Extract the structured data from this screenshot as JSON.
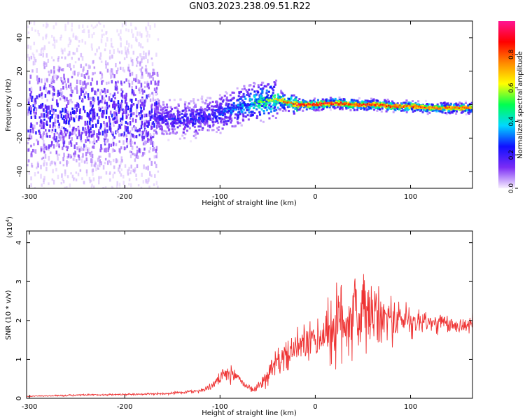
{
  "page": {
    "title": "GN03.2023.238.09.51.R22"
  },
  "colors": {
    "cloud_faint": "#d8b8f5",
    "cloud_mid": "#7a2cf0",
    "cloud_dense": "#4a10d8",
    "cloud_high": "#22e5e8",
    "ridge": "#ff2a2a",
    "snr_line": "#ee3333"
  },
  "chart_data": [
    {
      "type": "heatmap",
      "title": "GN03.2023.238.09.51.R22",
      "xlabel": "Height of straight line (km)",
      "ylabel": "Frequency (Hz)",
      "xlim": [
        -303,
        165
      ],
      "ylim": [
        -50,
        50
      ],
      "x_ticks": [
        "-300",
        "-200",
        "-100",
        "0",
        "100"
      ],
      "x_tick_values": [
        -300,
        -200,
        -100,
        0,
        100
      ],
      "y_ticks": [
        "40",
        "20",
        "0",
        "-20",
        "-40"
      ],
      "y_tick_values": [
        40,
        20,
        0,
        -20,
        -40
      ],
      "colorbar": {
        "label": "Normalized spectral amplitude",
        "range": [
          0.0,
          1.0
        ],
        "ticks": [
          "0.0",
          "0.2",
          "0.4",
          "0.6",
          "0.8"
        ],
        "tick_values": [
          0.0,
          0.2,
          0.4,
          0.6,
          0.8
        ],
        "stops": [
          "#f8f0ff",
          "#7b2cf5",
          "#1010ff",
          "#00d8ff",
          "#00ff50",
          "#ffff00",
          "#ff8800",
          "#ff0000",
          "#ff1494"
        ]
      },
      "ridge": {
        "description_points_x": [
          -165,
          -140,
          -120,
          -100,
          -80,
          -60,
          -40,
          -20,
          0,
          20,
          40,
          60,
          80,
          100,
          120,
          140,
          165
        ],
        "center_freq": [
          -8,
          -9,
          -8,
          -5,
          -1,
          2,
          3,
          0,
          0,
          1,
          0,
          0,
          -1,
          -1,
          -2,
          -2,
          -2
        ],
        "amplitude": [
          0.25,
          0.3,
          0.3,
          0.35,
          0.45,
          0.6,
          0.7,
          0.95,
          0.95,
          0.9,
          0.9,
          0.9,
          0.85,
          0.85,
          0.8,
          0.8,
          0.8
        ]
      }
    },
    {
      "type": "line",
      "xlabel": "Height of straight line (km)",
      "ylabel": "SNR (10 * v/v)",
      "y_multiplier": "(x10",
      "y_multiplier_exp": "4",
      "y_multiplier_close": ")",
      "xlim": [
        -303,
        165
      ],
      "ylim": [
        0,
        4.3
      ],
      "x_ticks": [
        "-300",
        "-200",
        "-100",
        "0",
        "100"
      ],
      "x_tick_values": [
        -300,
        -200,
        -100,
        0,
        100
      ],
      "y_ticks": [
        "0",
        "1",
        "2",
        "3",
        "4"
      ],
      "y_tick_values": [
        0,
        1,
        2,
        3,
        4
      ],
      "series": [
        {
          "x": [
            -303,
            -250,
            -200,
            -160,
            -140,
            -120,
            -110,
            -100,
            -95,
            -90,
            -85,
            -80,
            -75,
            -70,
            -65,
            -60,
            -55,
            -50,
            -45,
            -40,
            -35,
            -30,
            -25,
            -20,
            -15,
            -10,
            -5,
            0,
            5,
            10,
            15,
            20,
            25,
            30,
            35,
            40,
            45,
            50,
            55,
            60,
            65,
            70,
            75,
            80,
            85,
            90,
            95,
            100,
            105,
            110,
            115,
            120,
            125,
            130,
            135,
            140,
            145,
            150,
            155,
            160,
            165
          ],
          "values": [
            0.05,
            0.08,
            0.1,
            0.12,
            0.15,
            0.2,
            0.3,
            0.5,
            0.6,
            0.62,
            0.58,
            0.55,
            0.35,
            0.3,
            0.2,
            0.3,
            0.45,
            0.6,
            0.75,
            0.95,
            1.0,
            1.1,
            1.2,
            1.3,
            1.35,
            1.4,
            1.45,
            1.5,
            1.55,
            1.7,
            1.75,
            1.8,
            1.9,
            2.0,
            2.1,
            2.15,
            2.1,
            2.2,
            2.15,
            2.1,
            2.05,
            2.0,
            2.1,
            2.05,
            2.0,
            2.0,
            2.05,
            2.0,
            1.95,
            2.0,
            2.0,
            1.95,
            1.9,
            1.95,
            1.9,
            1.9,
            1.85,
            1.9,
            1.85,
            1.9,
            1.95
          ],
          "spread": [
            0.02,
            0.03,
            0.03,
            0.04,
            0.05,
            0.08,
            0.1,
            0.2,
            0.25,
            0.3,
            0.25,
            0.2,
            0.12,
            0.1,
            0.1,
            0.15,
            0.25,
            0.35,
            0.4,
            0.45,
            0.45,
            0.5,
            0.5,
            0.55,
            0.6,
            0.7,
            0.6,
            0.6,
            0.7,
            0.9,
            1.2,
            1.3,
            1.4,
            1.6,
            1.5,
            1.4,
            1.5,
            1.6,
            1.4,
            1.2,
            1.0,
            0.9,
            0.8,
            0.8,
            0.7,
            0.6,
            0.6,
            0.55,
            0.5,
            0.45,
            0.45,
            0.4,
            0.35,
            0.35,
            0.3,
            0.3,
            0.3,
            0.28,
            0.28,
            0.3,
            0.35
          ]
        }
      ]
    }
  ]
}
